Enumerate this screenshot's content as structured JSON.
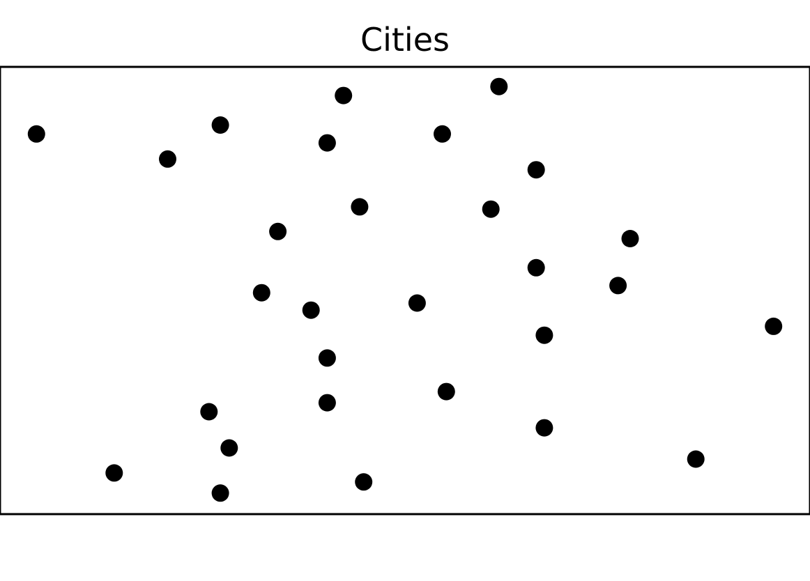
{
  "chart_data": {
    "type": "scatter",
    "title": "Cities",
    "xlabel": "",
    "ylabel": "",
    "xlim": [
      0,
      1
    ],
    "ylim": [
      0,
      1
    ],
    "grid": false,
    "axis_ticks": false,
    "legend": "none",
    "marker_color": "#000000",
    "points": [
      {
        "x": 0.045,
        "y": 0.85
      },
      {
        "x": 0.424,
        "y": 0.936
      },
      {
        "x": 0.616,
        "y": 0.956
      },
      {
        "x": 0.272,
        "y": 0.87
      },
      {
        "x": 0.207,
        "y": 0.794
      },
      {
        "x": 0.404,
        "y": 0.83
      },
      {
        "x": 0.546,
        "y": 0.85
      },
      {
        "x": 0.662,
        "y": 0.77
      },
      {
        "x": 0.444,
        "y": 0.687
      },
      {
        "x": 0.606,
        "y": 0.682
      },
      {
        "x": 0.343,
        "y": 0.632
      },
      {
        "x": 0.778,
        "y": 0.616
      },
      {
        "x": 0.662,
        "y": 0.551
      },
      {
        "x": 0.763,
        "y": 0.511
      },
      {
        "x": 0.323,
        "y": 0.495
      },
      {
        "x": 0.384,
        "y": 0.456
      },
      {
        "x": 0.515,
        "y": 0.472
      },
      {
        "x": 0.955,
        "y": 0.42
      },
      {
        "x": 0.672,
        "y": 0.4
      },
      {
        "x": 0.404,
        "y": 0.349
      },
      {
        "x": 0.551,
        "y": 0.274
      },
      {
        "x": 0.404,
        "y": 0.249
      },
      {
        "x": 0.258,
        "y": 0.229
      },
      {
        "x": 0.672,
        "y": 0.193
      },
      {
        "x": 0.283,
        "y": 0.148
      },
      {
        "x": 0.859,
        "y": 0.123
      },
      {
        "x": 0.141,
        "y": 0.092
      },
      {
        "x": 0.449,
        "y": 0.072
      },
      {
        "x": 0.272,
        "y": 0.047
      }
    ]
  }
}
